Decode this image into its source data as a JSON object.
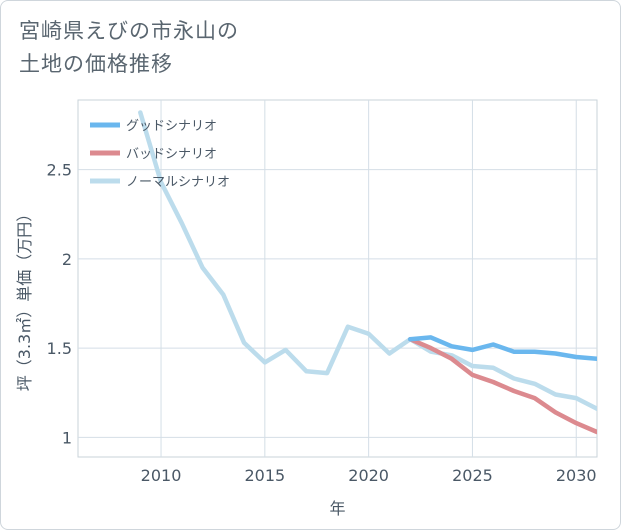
{
  "title_lines": [
    "宮崎県えびの市永山の",
    "土地の価格推移"
  ],
  "chart_data": {
    "type": "line",
    "xlabel": "年",
    "ylabel": "坪（3.3㎡）単価（万円）",
    "xlim": [
      2006,
      2031
    ],
    "ylim": [
      0.89,
      2.89
    ],
    "x_ticks": [
      2010,
      2015,
      2020,
      2025,
      2030
    ],
    "x_tick_labels": [
      "2010",
      "2015",
      "2020",
      "2025",
      "2030"
    ],
    "y_ticks": [
      1,
      1.5,
      2,
      2.5
    ],
    "y_tick_labels": [
      "1",
      "1.5",
      "2",
      "2.5"
    ],
    "grid": true,
    "legend_position": "top-left",
    "series": [
      {
        "name": "グッドシナリオ",
        "color": "#6ab7ee",
        "x": [
          2022,
          2023,
          2024,
          2025,
          2026,
          2027,
          2028,
          2029,
          2030,
          2031
        ],
        "y": [
          1.55,
          1.56,
          1.51,
          1.49,
          1.52,
          1.48,
          1.48,
          1.47,
          1.45,
          1.44
        ]
      },
      {
        "name": "バッドシナリオ",
        "color": "#dc8a8f",
        "x": [
          2022,
          2023,
          2024,
          2025,
          2026,
          2027,
          2028,
          2029,
          2030,
          2031
        ],
        "y": [
          1.55,
          1.5,
          1.44,
          1.35,
          1.31,
          1.26,
          1.22,
          1.14,
          1.08,
          1.03
        ]
      },
      {
        "name": "ノーマルシナリオ",
        "color": "#bcdcec",
        "x": [
          2009,
          2010,
          2011,
          2012,
          2013,
          2014,
          2015,
          2016,
          2017,
          2018,
          2019,
          2020,
          2021,
          2022,
          2023,
          2024,
          2025,
          2026,
          2027,
          2028,
          2029,
          2030,
          2031
        ],
        "y": [
          2.82,
          2.43,
          2.2,
          1.95,
          1.8,
          1.53,
          1.42,
          1.49,
          1.37,
          1.36,
          1.62,
          1.58,
          1.47,
          1.55,
          1.48,
          1.46,
          1.4,
          1.39,
          1.33,
          1.3,
          1.24,
          1.22,
          1.16
        ]
      }
    ]
  }
}
